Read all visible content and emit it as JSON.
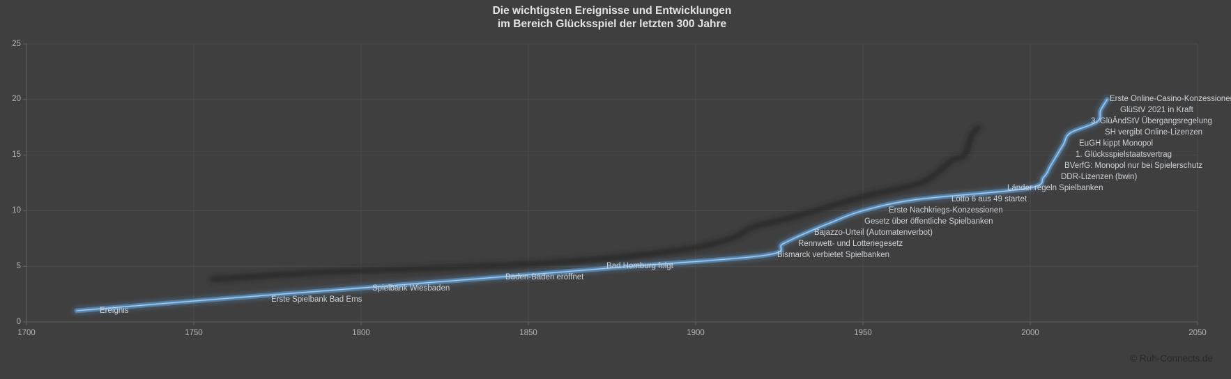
{
  "title": {
    "line1": "Die wichtigsten Ereignisse und Entwicklungen",
    "line2": "im Bereich Glücksspiel der letzten 300 Jahre"
  },
  "footer": {
    "copyright": "© Ruh-Connects.de"
  },
  "chart_data": {
    "type": "line",
    "title": "Die wichtigsten Ereignisse und Entwicklungen im Bereich Glücksspiel der letzten 300 Jahre",
    "legend": "none",
    "grid": true,
    "line_color": "#5b9bd5",
    "background_color": "#3f3f3f",
    "x_axis": {
      "min": 1700,
      "max": 2050,
      "tick_step": 50,
      "ticks": [
        "1700",
        "1750",
        "1800",
        "1850",
        "1900",
        "1950",
        "2000",
        "2050"
      ]
    },
    "y_axis": {
      "min": 0,
      "max": 25,
      "tick_step": 5,
      "ticks": [
        "0",
        "5",
        "10",
        "15",
        "20",
        "25"
      ]
    },
    "events": [
      {
        "label": "Ereignis",
        "year": 1715,
        "value": 1
      },
      {
        "label": "Erste Spielbank Bad Ems",
        "year": 1755,
        "value": 2
      },
      {
        "label": "Spielbank Wiesbaden",
        "year": 1798,
        "value": 3
      },
      {
        "label": "Baden-Baden eröffnet",
        "year": 1840,
        "value": 4
      },
      {
        "label": "Bad Homburg folgt",
        "year": 1881,
        "value": 5
      },
      {
        "label": "Bismarck verbietet Spielbanken",
        "year": 1921,
        "value": 6
      },
      {
        "label": "Rennwett- und Lotteriegesetz",
        "year": 1926,
        "value": 7
      },
      {
        "label": "Bajazzo-Urteil (Automatenverbot)",
        "year": 1933,
        "value": 8
      },
      {
        "label": "Gesetz über öffentliche Spielbanken",
        "year": 1941,
        "value": 9
      },
      {
        "label": "Erste Nachkriegs-Konzessionen",
        "year": 1950,
        "value": 10
      },
      {
        "label": "Lotto 6 aus 49 startet",
        "year": 1966,
        "value": 11
      },
      {
        "label": "Länder regeln Spielbanken",
        "year": 1999,
        "value": 12
      },
      {
        "label": "DDR-Lizenzen (bwin)",
        "year": 2004,
        "value": 13
      },
      {
        "label": "BVerfG: Monopol nur bei Spielerschutz",
        "year": 2006,
        "value": 14
      },
      {
        "label": "1. Glücksspielstaatsvertrag",
        "year": 2008,
        "value": 15
      },
      {
        "label": "EuGH kippt Monopol",
        "year": 2010,
        "value": 16
      },
      {
        "label": "SH vergibt Online-Lizenzen",
        "year": 2012,
        "value": 17
      },
      {
        "label": "3. GlüÄndStV Übergangsregelung",
        "year": 2020,
        "value": 18
      },
      {
        "label": "GlüStV 2021 in Kraft",
        "year": 2021,
        "value": 19
      },
      {
        "label": "Erste Online-Casino-Konzessionen",
        "year": 2023,
        "value": 20
      }
    ]
  }
}
